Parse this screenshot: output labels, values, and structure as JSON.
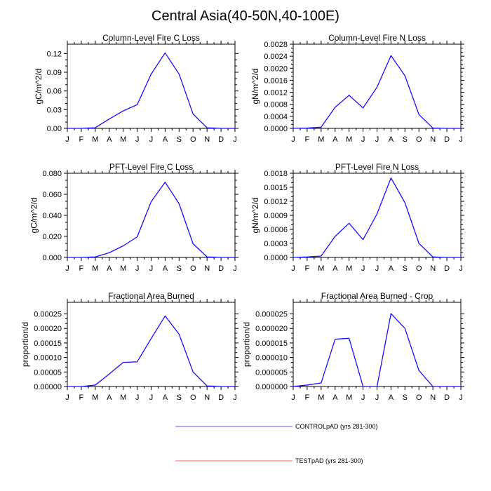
{
  "title": "Central Asia(40-50N,40-100E)",
  "legend": [
    {
      "label": "CONTROLpAD (yrs 281-300)",
      "color": "#1a0dff"
    },
    {
      "label": "TESTpAD (yrs 281-300)",
      "color": "#ff2222"
    }
  ],
  "chart_data": [
    {
      "type": "line",
      "title": "Column-Level Fire C Loss",
      "ylabel": "gC/m^2/d",
      "x": [
        "J",
        "F",
        "M",
        "A",
        "M",
        "J",
        "J",
        "A",
        "S",
        "O",
        "N",
        "D",
        "J"
      ],
      "ylim": [
        0,
        0.135
      ],
      "yticks": [
        "0.00",
        "0.03",
        "0.06",
        "0.09",
        "0.12"
      ],
      "ytick_values": [
        0,
        0.03,
        0.06,
        0.09,
        0.12
      ],
      "series": [
        {
          "name": "CONTROLpAD (yrs 281-300)",
          "values": [
            0,
            0,
            0.001,
            0.015,
            0.028,
            0.038,
            0.087,
            0.121,
            0.087,
            0.023,
            0.001,
            0,
            0
          ]
        }
      ]
    },
    {
      "type": "line",
      "title": "Column-Level Fire N Loss",
      "ylabel": "gN/m^2/d",
      "x": [
        "J",
        "F",
        "M",
        "A",
        "M",
        "J",
        "J",
        "A",
        "S",
        "O",
        "N",
        "D",
        "J"
      ],
      "ylim": [
        0,
        0.0028
      ],
      "yticks": [
        "0.0000",
        "0.0004",
        "0.0008",
        "0.0012",
        "0.0016",
        "0.0020",
        "0.0024",
        "0.0028"
      ],
      "ytick_values": [
        0,
        0.0004,
        0.0008,
        0.0012,
        0.0016,
        0.002,
        0.0024,
        0.0028
      ],
      "series": [
        {
          "name": "CONTROLpAD (yrs 281-300)",
          "values": [
            0,
            1e-05,
            4e-05,
            0.0007,
            0.0011,
            0.00068,
            0.00137,
            0.00242,
            0.00175,
            0.00046,
            1e-05,
            0,
            0
          ]
        }
      ]
    },
    {
      "type": "line",
      "title": "PFT-Level Fire C Loss",
      "ylabel": "gC/m^2/d",
      "x": [
        "J",
        "F",
        "M",
        "A",
        "M",
        "J",
        "J",
        "A",
        "S",
        "O",
        "N",
        "D",
        "J"
      ],
      "ylim": [
        0,
        0.08
      ],
      "yticks": [
        "0.000",
        "0.020",
        "0.040",
        "0.060",
        "0.080"
      ],
      "ytick_values": [
        0,
        0.02,
        0.04,
        0.06,
        0.08
      ],
      "series": [
        {
          "name": "CONTROLpAD (yrs 281-300)",
          "values": [
            0,
            0,
            0.0005,
            0.0045,
            0.011,
            0.0195,
            0.053,
            0.0715,
            0.051,
            0.013,
            0.0005,
            0,
            0
          ]
        }
      ]
    },
    {
      "type": "line",
      "title": "PFT-Level Fire N Loss",
      "ylabel": "gN/m^2/d",
      "x": [
        "J",
        "F",
        "M",
        "A",
        "M",
        "J",
        "J",
        "A",
        "S",
        "O",
        "N",
        "D",
        "J"
      ],
      "ylim": [
        0,
        0.0018
      ],
      "yticks": [
        "0.0000",
        "0.0003",
        "0.0006",
        "0.0009",
        "0.0012",
        "0.0015",
        "0.0018"
      ],
      "ytick_values": [
        0,
        0.0003,
        0.0006,
        0.0009,
        0.0012,
        0.0015,
        0.0018
      ],
      "series": [
        {
          "name": "CONTROLpAD (yrs 281-300)",
          "values": [
            0,
            1e-05,
            3e-05,
            0.00045,
            0.00073,
            0.00038,
            0.00093,
            0.0017,
            0.00117,
            0.0003,
            1e-05,
            0,
            0
          ]
        }
      ]
    },
    {
      "type": "line",
      "title": "Fractional Area Burned",
      "ylabel": "proportion/d",
      "x": [
        "J",
        "F",
        "M",
        "A",
        "M",
        "J",
        "J",
        "A",
        "S",
        "O",
        "N",
        "D",
        "J"
      ],
      "ylim": [
        0,
        0.00029
      ],
      "yticks": [
        "0.00000",
        "0.00005",
        "0.00010",
        "0.00015",
        "0.00020",
        "0.00025"
      ],
      "ytick_values": [
        0,
        5e-05,
        0.0001,
        0.00015,
        0.0002,
        0.00025
      ],
      "series": [
        {
          "name": "CONTROLpAD (yrs 281-300)",
          "values": [
            0,
            0,
            5e-06,
            4.3e-05,
            8.3e-05,
            8.5e-05,
            0.000165,
            0.000243,
            0.00018,
            5e-05,
            2e-06,
            0,
            0
          ]
        }
      ]
    },
    {
      "type": "line",
      "title": "Fractional Area Burned - Crop",
      "ylabel": "proportion/d",
      "x": [
        "J",
        "F",
        "M",
        "A",
        "M",
        "J",
        "J",
        "A",
        "S",
        "O",
        "N",
        "D",
        "J"
      ],
      "ylim": [
        0,
        2.9e-05
      ],
      "yticks": [
        "0.000000",
        "0.000005",
        "0.000010",
        "0.000015",
        "0.000020",
        "0.000025"
      ],
      "ytick_values": [
        0,
        5e-06,
        1e-05,
        1.5e-05,
        2e-05,
        2.5e-05
      ],
      "series": [
        {
          "name": "CONTROLpAD (yrs 281-300)",
          "values": [
            0,
            5e-07,
            1.2e-06,
            1.63e-05,
            1.66e-05,
            0,
            0,
            2.51e-05,
            2e-05,
            5.5e-06,
            0,
            0,
            0
          ]
        }
      ]
    }
  ]
}
